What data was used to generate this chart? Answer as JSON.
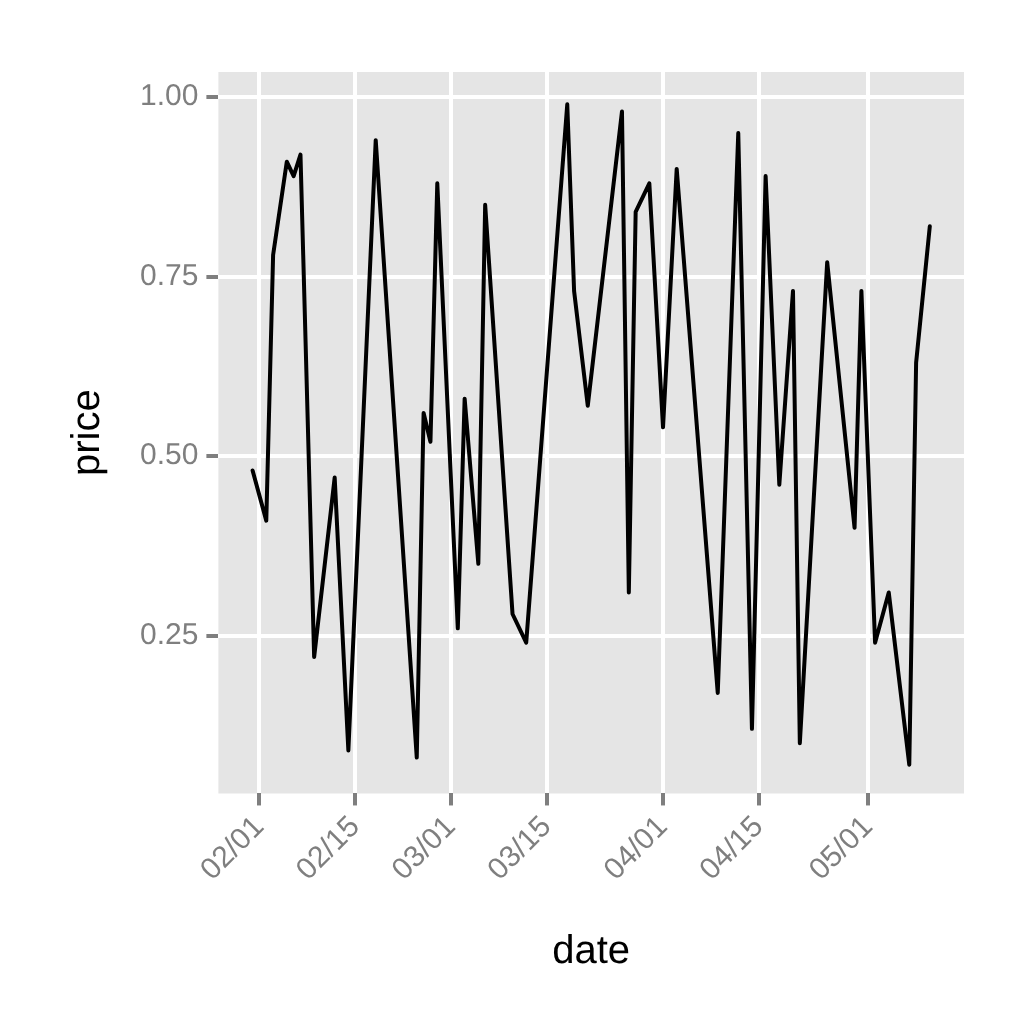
{
  "chart_data": {
    "type": "line",
    "xlabel": "date",
    "ylabel": "price",
    "x": [
      "--01-31",
      "--02-02",
      "--02-03",
      "--02-05",
      "--02-06",
      "--02-07",
      "--02-09",
      "--02-12",
      "--02-14",
      "--02-18",
      "--02-24",
      "--02-25",
      "--02-26",
      "--02-27",
      "--03-02",
      "--03-03",
      "--03-05",
      "--03-06",
      "--03-10",
      "--03-12",
      "--03-18",
      "--03-19",
      "--03-21",
      "--03-26",
      "--03-27",
      "--03-28",
      "--03-30",
      "--04-01",
      "--04-03",
      "--04-09",
      "--04-12",
      "--04-14",
      "--04-16",
      "--04-18",
      "--04-20",
      "--04-21",
      "--04-25",
      "--04-29",
      "--04-30",
      "--05-02",
      "--05-04",
      "--05-07",
      "--05-08",
      "--05-10"
    ],
    "series": [
      {
        "color": "#000000",
        "values": [
          0.48,
          0.41,
          0.78,
          0.91,
          0.89,
          0.92,
          0.22,
          0.47,
          0.09,
          0.94,
          0.08,
          0.56,
          0.52,
          0.88,
          0.26,
          0.58,
          0.35,
          0.85,
          0.28,
          0.24,
          0.99,
          0.73,
          0.57,
          0.98,
          0.31,
          0.84,
          0.88,
          0.54,
          0.9,
          0.17,
          0.95,
          0.12,
          0.89,
          0.46,
          0.73,
          0.1,
          0.77,
          0.4,
          0.73,
          0.24,
          0.31,
          0.07,
          0.63,
          0.82
        ]
      }
    ],
    "xlim": [
      "--01-26",
      "--05-15"
    ],
    "xticks": [
      {
        "value": "--02-01",
        "label": "02/01"
      },
      {
        "value": "--02-15",
        "label": "02/15"
      },
      {
        "value": "--03-01",
        "label": "03/01"
      },
      {
        "value": "--03-15",
        "label": "03/15"
      },
      {
        "value": "--04-01",
        "label": "04/01"
      },
      {
        "value": "--04-15",
        "label": "04/15"
      },
      {
        "value": "--05-01",
        "label": "05/01"
      }
    ],
    "ylim": [
      0.03,
      1.035
    ],
    "yticks": [
      {
        "value": 0.25,
        "label": "0.25"
      },
      {
        "value": 0.5,
        "label": "0.50"
      },
      {
        "value": 0.75,
        "label": "0.75"
      },
      {
        "value": 1,
        "label": "1.00"
      }
    ],
    "grid": true,
    "legend": false,
    "marker": "none",
    "line_style": "solid"
  }
}
